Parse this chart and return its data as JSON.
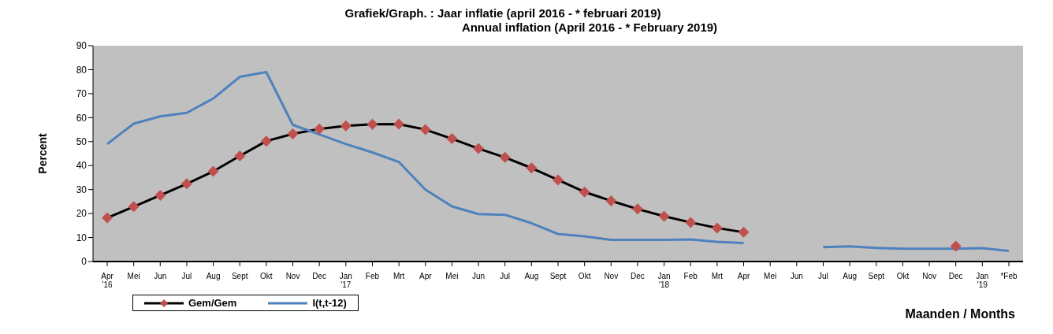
{
  "chart_data": {
    "type": "line",
    "title": "Grafiek/Graph. : Jaar inflatie (april 2016 -  * februari 2019)",
    "subtitle": "Annual inflation (April 2016 -  * February 2019)",
    "ylabel": "Percent",
    "xlabel": "Maanden / Months",
    "categories": [
      "Apr\n'16",
      "Mei",
      "Jun",
      "Jul",
      "Aug",
      "Sept",
      "Okt",
      "Nov",
      "Dec",
      "Jan\n'17",
      "Feb",
      "Mrt",
      "Apr",
      "Mei",
      "Jun",
      "Jul",
      "Aug",
      "Sept",
      "Okt",
      "Nov",
      "Dec",
      "Jan\n'18",
      "Feb",
      "Mrt",
      "Apr",
      "Mei",
      "Jun",
      "Jul",
      "Aug",
      "Sept",
      "Okt",
      "Nov",
      "Dec",
      "Jan\n'19",
      "*Feb"
    ],
    "series": [
      {
        "name": "Gem/Gem",
        "color": "#c0504d",
        "marker": "diamond",
        "values": [
          18.2,
          22.9,
          27.6,
          32.4,
          37.6,
          44,
          50.2,
          53.2,
          55.3,
          56.6,
          57.2,
          57.3,
          55,
          51.2,
          47.1,
          43.4,
          39,
          34,
          29,
          25.3,
          21.9,
          18.9,
          16.3,
          14,
          12.2,
          null,
          null,
          null,
          null,
          null,
          null,
          null,
          6.4,
          null,
          null
        ]
      },
      {
        "name": "I(t,t-12)",
        "color": "#4f81bd",
        "marker": "none",
        "values": [
          49,
          57.5,
          60.5,
          62,
          68,
          77,
          79,
          57,
          53,
          49,
          45.5,
          41.5,
          30,
          23,
          19.8,
          19.5,
          16,
          11.5,
          10.5,
          9,
          9,
          9,
          9.2,
          8.2,
          7.7,
          null,
          null,
          6,
          6.3,
          5.7,
          5.3,
          5.3,
          5.3,
          5.6,
          4.4
        ]
      }
    ],
    "ylim": [
      0,
      90
    ],
    "yticks": [
      0,
      10,
      20,
      30,
      40,
      50,
      60,
      70,
      80,
      90
    ],
    "grid": false,
    "legend": "bottom left",
    "line_style": "solid"
  }
}
